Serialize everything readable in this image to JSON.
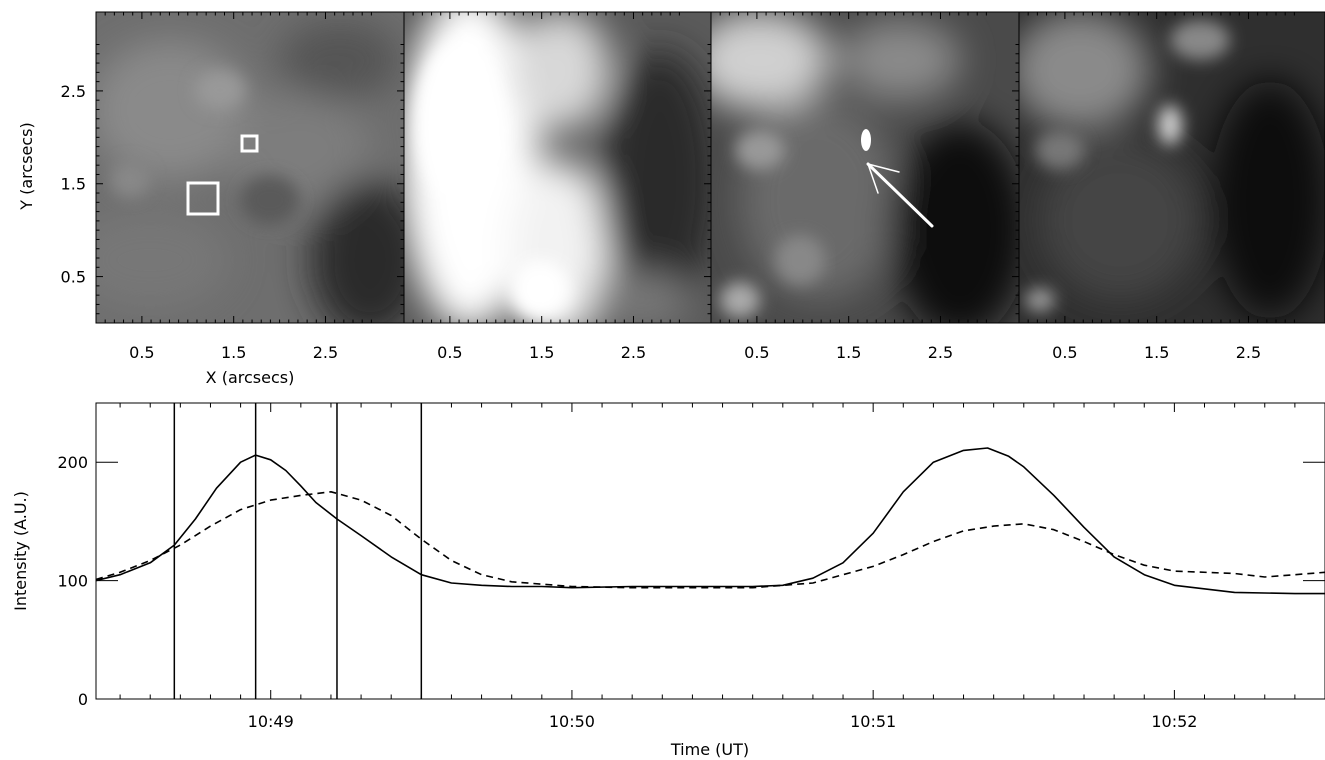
{
  "figure": {
    "panels": {
      "count": 4,
      "xticks": [
        "0.5",
        "1.5",
        "2.5"
      ],
      "xtick_values": [
        0.5,
        1.5,
        2.5
      ],
      "yticks": [
        "0.5",
        "1.5",
        "2.5"
      ],
      "ytick_values": [
        0.5,
        1.5,
        2.5
      ],
      "xlabel": "X (arcsecs)",
      "ylabel": "Y (arcsecs)",
      "xlim": [
        0,
        3.35
      ],
      "ylim": [
        0,
        3.35
      ],
      "colormap": "grayscale",
      "annotations": {
        "panel_1_boxes": [
          "small square near (1.7, 1.95)",
          "larger square near (1.18, 1.3)"
        ],
        "panel_3_arrow": "white arrow pointing to bright point near (1.7, 1.75)"
      }
    }
  },
  "chart_data": [
    {
      "type": "heatmap",
      "panel": 1,
      "description": "grayscale intensity image, mottled gray with dark lower-right",
      "xlabel": "X (arcsecs)",
      "ylabel": "Y (arcsecs)",
      "boxes": [
        {
          "x": [
            1.62,
            1.78
          ],
          "y": [
            1.87,
            2.03
          ]
        },
        {
          "x": [
            1.02,
            1.35
          ],
          "y": [
            1.18,
            1.52
          ]
        }
      ]
    },
    {
      "type": "heatmap",
      "panel": 2,
      "description": "grayscale intensity image, bright saturated region on left-center"
    },
    {
      "type": "heatmap",
      "panel": 3,
      "description": "grayscale intensity image with bright point and arrow",
      "arrow": {
        "from": [
          2.4,
          1.05
        ],
        "to": [
          1.72,
          1.75
        ]
      }
    },
    {
      "type": "heatmap",
      "panel": 4,
      "description": "grayscale intensity image, dark with scattered bright features"
    },
    {
      "type": "line",
      "xlabel": "Time (UT)",
      "ylabel": "Intensity (A.U.)",
      "xticks": [
        "10:49",
        "10:50",
        "10:51",
        "10:52"
      ],
      "xtick_values": [
        49,
        50,
        51,
        52
      ],
      "yticks": [
        "0",
        "100",
        "200"
      ],
      "ytick_values": [
        0,
        100,
        200
      ],
      "xlim": [
        48.42,
        52.5
      ],
      "ylim": [
        0,
        250
      ],
      "vlines": [
        48.68,
        48.95,
        49.22,
        49.5
      ],
      "series": [
        {
          "style": "solid",
          "x": [
            48.42,
            48.5,
            48.6,
            48.68,
            48.75,
            48.82,
            48.9,
            48.95,
            49.0,
            49.05,
            49.1,
            49.15,
            49.22,
            49.3,
            49.4,
            49.5,
            49.6,
            49.7,
            49.8,
            49.9,
            50.0,
            50.2,
            50.4,
            50.6,
            50.7,
            50.8,
            50.9,
            51.0,
            51.1,
            51.2,
            51.3,
            51.38,
            51.45,
            51.5,
            51.6,
            51.7,
            51.8,
            51.9,
            52.0,
            52.2,
            52.4,
            52.5
          ],
          "y": [
            100,
            105,
            115,
            130,
            152,
            178,
            200,
            206,
            202,
            193,
            180,
            166,
            152,
            138,
            120,
            105,
            98,
            96,
            95,
            95,
            94,
            95,
            95,
            95,
            96,
            102,
            115,
            140,
            175,
            200,
            210,
            212,
            205,
            196,
            172,
            145,
            120,
            105,
            96,
            90,
            89,
            89
          ]
        },
        {
          "style": "dashed",
          "x": [
            48.42,
            48.5,
            48.6,
            48.7,
            48.8,
            48.9,
            49.0,
            49.1,
            49.2,
            49.3,
            49.4,
            49.5,
            49.6,
            49.7,
            49.8,
            50.0,
            50.2,
            50.4,
            50.6,
            50.8,
            50.9,
            51.0,
            51.1,
            51.2,
            51.3,
            51.4,
            51.5,
            51.6,
            51.7,
            51.8,
            51.9,
            52.0,
            52.2,
            52.3,
            52.4,
            52.5
          ],
          "y": [
            101,
            107,
            117,
            130,
            146,
            160,
            168,
            172,
            175,
            168,
            155,
            135,
            117,
            105,
            99,
            95,
            94,
            94,
            94,
            98,
            105,
            112,
            122,
            133,
            142,
            146,
            148,
            143,
            133,
            122,
            113,
            108,
            106,
            103,
            105,
            107
          ]
        }
      ]
    }
  ]
}
